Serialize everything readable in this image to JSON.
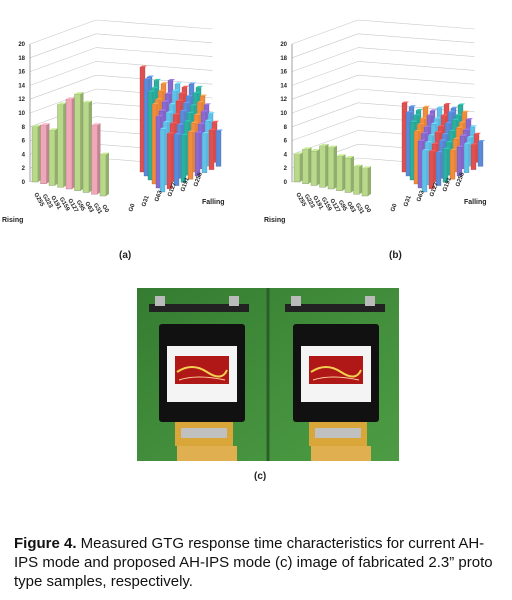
{
  "chart_data": [
    {
      "type": "bar",
      "panel": "(a)",
      "x_axis_label": "Rising",
      "y_axis_label": "Falling",
      "x_tick_labels": [
        "G255",
        "G223",
        "G191",
        "G159",
        "G127",
        "G95",
        "G63",
        "G31",
        "G0"
      ],
      "y_tick_labels": [
        "G0",
        "G31",
        "G63",
        "G127",
        "G191",
        "G255"
      ],
      "ylim": [
        0,
        20
      ],
      "z_ticks": [
        0,
        2,
        4,
        6,
        8,
        10,
        12,
        14,
        16,
        18,
        20
      ],
      "rising_values": [
        8,
        8.5,
        8,
        12,
        13,
        14,
        13,
        10,
        6
      ],
      "falling_values": [
        16,
        14,
        13,
        12,
        12,
        11,
        10,
        10,
        9
      ]
    },
    {
      "type": "bar",
      "panel": "(b)",
      "x_axis_label": "Rising",
      "y_axis_label": "Falling",
      "x_tick_labels": [
        "G255",
        "G223",
        "G191",
        "G159",
        "G127",
        "G95",
        "G63",
        "G31",
        "G0"
      ],
      "y_tick_labels": [
        "G0",
        "G31",
        "G63",
        "G127",
        "G191",
        "G255"
      ],
      "ylim": [
        0,
        20
      ],
      "z_ticks": [
        0,
        2,
        4,
        6,
        8,
        10,
        12,
        14,
        16,
        18,
        20
      ],
      "rising_values": [
        4,
        5,
        5,
        6,
        6,
        5,
        5,
        4,
        4
      ],
      "falling_values": [
        10,
        9,
        8,
        8,
        7,
        7,
        7,
        6,
        6
      ]
    }
  ],
  "labels": {
    "a": "(a)",
    "b": "(b)",
    "c": "(c)"
  },
  "colors": {
    "rising_bar": "#b8d88a",
    "rising_bar_pink": "#f0a8b8",
    "falling_series": [
      "#e05050",
      "#5a8ad8",
      "#2bb0a0",
      "#f08c3c",
      "#8a6ad0",
      "#60c0e8"
    ],
    "grid": "#c8c8c8",
    "pcb_green": "#3f8f3a",
    "bezel": "#111111",
    "screen_red": "#b01818"
  },
  "caption": {
    "bold": "Figure 4.",
    "text": " Measured GTG response time characteristics for current AH-IPS mode and proposed AH-IPS mode (c) image of fabricated 2.3” proto type samples, respectively."
  }
}
